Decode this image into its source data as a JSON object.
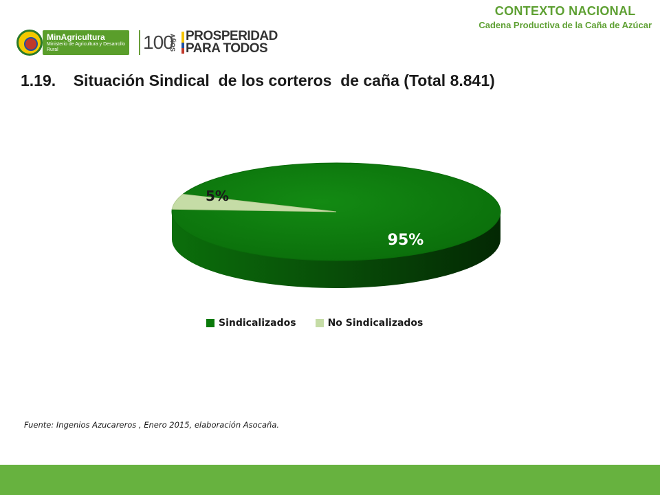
{
  "header": {
    "section_title": "CONTEXTO NACIONAL",
    "section_subtitle": "Cadena Productiva de la Caña de Azúcar"
  },
  "logos": {
    "ministry_name": "MinAgricultura",
    "ministry_desc": "Ministerio de Agricultura y Desarrollo Rural",
    "anniversary_number": "100",
    "anniversary_word": "AÑOS",
    "slogan": "PROSPERIDAD PARA TODOS"
  },
  "title": "1.19.    Situación Sindical  de los corteros  de caña (Total 8.841)",
  "source": "Fuente: Ingenios Azucareros , Enero 2015, elaboración Asocaña.",
  "colors": {
    "accent_green": "#5ea033",
    "footer_green": "#67b23f",
    "slice_sindicalizados": "#0a7a0a",
    "slice_no_sindicalizados": "#c5dca6"
  },
  "chart_data": {
    "type": "pie",
    "style": "3d",
    "categories": [
      "Sindicalizados",
      "No Sindicalizados"
    ],
    "values": [
      95,
      5
    ],
    "data_labels": [
      "95%",
      "5%"
    ],
    "legend_position": "bottom"
  }
}
